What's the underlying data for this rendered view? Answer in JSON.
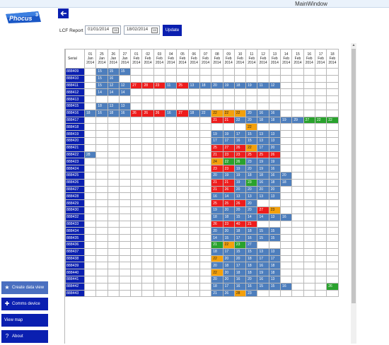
{
  "window": {
    "title": "MainWindow"
  },
  "logo": {
    "text": "Phocus",
    "superscript": "3"
  },
  "report": {
    "label": "LCF Report",
    "from_date": "01/01/2014",
    "to_date": "18/02/2014",
    "update_label": "Update"
  },
  "grid": {
    "serial_header": "Serial",
    "dates": [
      [
        "01",
        "Jan",
        "2014"
      ],
      [
        "25",
        "Jan",
        "2014"
      ],
      [
        "26",
        "Jan",
        "2014"
      ],
      [
        "27",
        "Jan",
        "2014"
      ],
      [
        "01",
        "Feb",
        "2014"
      ],
      [
        "02",
        "Feb",
        "2014"
      ],
      [
        "03",
        "Feb",
        "2014"
      ],
      [
        "04",
        "Feb",
        "2014"
      ],
      [
        "05",
        "Feb",
        "2014"
      ],
      [
        "06",
        "Feb",
        "2014"
      ],
      [
        "07",
        "Feb",
        "2014"
      ],
      [
        "08",
        "Feb",
        "2014"
      ],
      [
        "09",
        "Feb",
        "2014"
      ],
      [
        "10",
        "Feb",
        "2014"
      ],
      [
        "11",
        "Feb",
        "2014"
      ],
      [
        "12",
        "Feb",
        "2014"
      ],
      [
        "13",
        "Feb",
        "2014"
      ],
      [
        "14",
        "Feb",
        "2014"
      ],
      [
        "15",
        "Feb",
        "2014"
      ],
      [
        "16",
        "Feb",
        "2014"
      ],
      [
        "17",
        "Feb",
        "2014"
      ],
      [
        "18",
        "Feb",
        "2014"
      ]
    ],
    "legend_colors": {
      "1": "#4d7ebd",
      "2": "#ee1c1c",
      "3": "#f4a00b",
      "4": "#29a22d"
    },
    "rows": [
      {
        "serial": "888409",
        "cells": [
          [
            1,
            1,
            "15"
          ],
          [
            2,
            1,
            "15"
          ],
          [
            3,
            1,
            "15"
          ]
        ]
      },
      {
        "serial": "888410",
        "cells": [
          [
            1,
            1,
            "15"
          ],
          [
            2,
            1,
            "16"
          ]
        ]
      },
      {
        "serial": "888411",
        "cells": [
          [
            1,
            1,
            "15"
          ],
          [
            2,
            1,
            "12"
          ],
          [
            3,
            1,
            "12"
          ],
          [
            4,
            2,
            "27"
          ],
          [
            5,
            2,
            "28"
          ],
          [
            6,
            2,
            "23"
          ],
          [
            7,
            1,
            "11"
          ],
          [
            8,
            2,
            "25"
          ],
          [
            9,
            1,
            "13"
          ],
          [
            10,
            1,
            "18"
          ],
          [
            11,
            1,
            "20"
          ],
          [
            12,
            1,
            "19"
          ],
          [
            13,
            1,
            "18"
          ],
          [
            14,
            1,
            "19"
          ],
          [
            15,
            1,
            "11"
          ],
          [
            16,
            1,
            "12"
          ]
        ]
      },
      {
        "serial": "888412",
        "cells": [
          [
            1,
            1,
            "14"
          ],
          [
            2,
            1,
            "14"
          ],
          [
            3,
            1,
            "14"
          ]
        ]
      },
      {
        "serial": "888413",
        "cells": []
      },
      {
        "serial": "888415",
        "cells": [
          [
            1,
            1,
            "18"
          ],
          [
            2,
            1,
            "13"
          ],
          [
            3,
            1,
            "13"
          ]
        ]
      },
      {
        "serial": "888416",
        "cells": [
          [
            0,
            1,
            "18"
          ],
          [
            1,
            1,
            "16"
          ],
          [
            2,
            1,
            "18"
          ],
          [
            3,
            1,
            "16"
          ],
          [
            4,
            2,
            "26"
          ],
          [
            5,
            2,
            "26"
          ],
          [
            6,
            2,
            "26"
          ],
          [
            7,
            1,
            "16"
          ],
          [
            8,
            2,
            "27"
          ],
          [
            9,
            1,
            "18"
          ],
          [
            10,
            1,
            "22"
          ],
          [
            11,
            3,
            "22"
          ],
          [
            12,
            3,
            "22"
          ],
          [
            13,
            3,
            "22"
          ],
          [
            14,
            1,
            "20"
          ],
          [
            15,
            1,
            "16"
          ],
          [
            16,
            1,
            "16"
          ]
        ]
      },
      {
        "serial": "888417",
        "cells": [
          [
            11,
            2,
            "21"
          ],
          [
            12,
            2,
            "21"
          ],
          [
            13,
            1,
            "22"
          ],
          [
            14,
            1,
            "20"
          ],
          [
            15,
            1,
            "18"
          ],
          [
            16,
            1,
            "18"
          ],
          [
            17,
            1,
            "19"
          ],
          [
            18,
            1,
            "29"
          ],
          [
            19,
            4,
            "27"
          ],
          [
            20,
            4,
            "22"
          ],
          [
            21,
            4,
            "22"
          ]
        ]
      },
      {
        "serial": "888418",
        "cells": [
          [
            14,
            3,
            "22"
          ]
        ]
      },
      {
        "serial": "888419",
        "cells": [
          [
            11,
            1,
            "19"
          ],
          [
            12,
            1,
            "19"
          ],
          [
            13,
            1,
            "17"
          ],
          [
            14,
            1,
            "15"
          ],
          [
            15,
            1,
            "13"
          ],
          [
            16,
            1,
            "13"
          ]
        ]
      },
      {
        "serial": "888420",
        "cells": [
          [
            11,
            1,
            "17"
          ],
          [
            12,
            1,
            "17"
          ],
          [
            13,
            1,
            "16"
          ],
          [
            14,
            1,
            "15"
          ],
          [
            15,
            1,
            "13"
          ],
          [
            16,
            1,
            "13"
          ]
        ]
      },
      {
        "serial": "888421",
        "cells": [
          [
            11,
            2,
            "25"
          ],
          [
            12,
            2,
            "27"
          ],
          [
            13,
            2,
            "26"
          ],
          [
            14,
            3,
            "22"
          ],
          [
            15,
            1,
            "17"
          ],
          [
            16,
            1,
            "20"
          ]
        ]
      },
      {
        "serial": "888422",
        "cells": [
          [
            0,
            1,
            "28"
          ],
          [
            11,
            2,
            "21"
          ],
          [
            12,
            2,
            "23"
          ],
          [
            13,
            2,
            "23"
          ],
          [
            14,
            2,
            "25"
          ],
          [
            15,
            2,
            "25"
          ],
          [
            16,
            2,
            "26"
          ]
        ]
      },
      {
        "serial": "888423",
        "cells": [
          [
            11,
            3,
            "24"
          ],
          [
            12,
            4,
            "22"
          ],
          [
            13,
            4,
            "26"
          ],
          [
            14,
            1,
            "23"
          ],
          [
            15,
            1,
            "19"
          ],
          [
            16,
            1,
            "19"
          ]
        ]
      },
      {
        "serial": "888424",
        "cells": [
          [
            11,
            2,
            "23"
          ],
          [
            12,
            2,
            "23"
          ],
          [
            13,
            1,
            "19"
          ],
          [
            14,
            1,
            "20"
          ],
          [
            15,
            1,
            "19"
          ],
          [
            16,
            1,
            "16"
          ]
        ]
      },
      {
        "serial": "888425",
        "cells": [
          [
            11,
            1,
            "20"
          ],
          [
            12,
            1,
            "19"
          ],
          [
            13,
            1,
            "19"
          ],
          [
            14,
            1,
            "18"
          ],
          [
            15,
            1,
            "18"
          ],
          [
            16,
            1,
            "16"
          ],
          [
            17,
            1,
            "20"
          ]
        ]
      },
      {
        "serial": "888426",
        "cells": [
          [
            11,
            2,
            "21"
          ],
          [
            12,
            2,
            "21"
          ],
          [
            13,
            1,
            "19"
          ],
          [
            14,
            4,
            "23"
          ],
          [
            15,
            1,
            "16"
          ],
          [
            16,
            1,
            "18"
          ],
          [
            17,
            1,
            "18"
          ]
        ]
      },
      {
        "serial": "888427",
        "cells": [
          [
            11,
            2,
            "21"
          ],
          [
            12,
            2,
            "26"
          ],
          [
            13,
            1,
            "20"
          ],
          [
            14,
            1,
            "20"
          ],
          [
            15,
            1,
            "20"
          ],
          [
            16,
            1,
            "20"
          ]
        ]
      },
      {
        "serial": "888428",
        "cells": [
          [
            11,
            1,
            "16"
          ],
          [
            12,
            1,
            "14"
          ],
          [
            13,
            1,
            "13"
          ],
          [
            14,
            1,
            "13"
          ],
          [
            15,
            1,
            "13"
          ],
          [
            16,
            1,
            "13"
          ]
        ]
      },
      {
        "serial": "888429",
        "cells": [
          [
            11,
            2,
            "25"
          ],
          [
            12,
            2,
            "25"
          ],
          [
            13,
            2,
            "26"
          ],
          [
            14,
            1,
            "20"
          ]
        ]
      },
      {
        "serial": "888430",
        "cells": [
          [
            11,
            1,
            "19"
          ],
          [
            12,
            1,
            "20"
          ],
          [
            13,
            1,
            "20"
          ],
          [
            14,
            1,
            "20"
          ],
          [
            15,
            2,
            "27"
          ],
          [
            16,
            3,
            "23"
          ]
        ]
      },
      {
        "serial": "888432",
        "cells": [
          [
            11,
            1,
            "18"
          ],
          [
            12,
            1,
            "18"
          ],
          [
            13,
            1,
            "15"
          ],
          [
            14,
            1,
            "14"
          ],
          [
            15,
            1,
            "14"
          ],
          [
            16,
            1,
            "13"
          ],
          [
            17,
            1,
            "16"
          ]
        ]
      },
      {
        "serial": "888433",
        "cells": [
          [
            11,
            2,
            "26"
          ],
          [
            12,
            2,
            "23"
          ],
          [
            13,
            2,
            "40"
          ],
          [
            14,
            2,
            "21"
          ]
        ]
      },
      {
        "serial": "888434",
        "cells": [
          [
            11,
            1,
            "20"
          ],
          [
            12,
            1,
            "20"
          ],
          [
            13,
            1,
            "18"
          ],
          [
            14,
            1,
            "18"
          ],
          [
            15,
            1,
            "15"
          ],
          [
            16,
            1,
            "15"
          ]
        ]
      },
      {
        "serial": "888435",
        "cells": [
          [
            11,
            1,
            "14"
          ],
          [
            12,
            1,
            "15"
          ],
          [
            13,
            1,
            "17"
          ],
          [
            14,
            1,
            "16"
          ],
          [
            15,
            1,
            "15"
          ],
          [
            16,
            1,
            "15"
          ]
        ]
      },
      {
        "serial": "888436",
        "cells": [
          [
            11,
            4,
            "21"
          ],
          [
            12,
            3,
            "22"
          ],
          [
            13,
            4,
            "23"
          ],
          [
            14,
            1,
            "27"
          ]
        ]
      },
      {
        "serial": "888437",
        "cells": [
          [
            11,
            1,
            "18"
          ],
          [
            12,
            1,
            "17"
          ],
          [
            13,
            1,
            "15"
          ],
          [
            14,
            1,
            "15"
          ],
          [
            15,
            1,
            "13"
          ],
          [
            16,
            1,
            "13"
          ]
        ]
      },
      {
        "serial": "888438",
        "cells": [
          [
            11,
            3,
            "22"
          ],
          [
            12,
            1,
            "20"
          ],
          [
            13,
            1,
            "20"
          ],
          [
            14,
            1,
            "18"
          ],
          [
            15,
            1,
            "17"
          ],
          [
            16,
            1,
            "17"
          ]
        ]
      },
      {
        "serial": "888439",
        "cells": [
          [
            11,
            1,
            "20"
          ],
          [
            12,
            1,
            "18"
          ],
          [
            13,
            1,
            "17"
          ],
          [
            14,
            1,
            "18"
          ],
          [
            15,
            1,
            "16"
          ],
          [
            16,
            1,
            "18"
          ]
        ]
      },
      {
        "serial": "888440",
        "cells": [
          [
            11,
            3,
            "22"
          ],
          [
            12,
            1,
            "20"
          ],
          [
            13,
            1,
            "18"
          ],
          [
            14,
            1,
            "18"
          ],
          [
            15,
            1,
            "19"
          ],
          [
            16,
            1,
            "18"
          ]
        ]
      },
      {
        "serial": "888441",
        "cells": [
          [
            11,
            1,
            "20"
          ],
          [
            12,
            1,
            "20"
          ],
          [
            13,
            1,
            "16"
          ],
          [
            14,
            1,
            "20"
          ],
          [
            15,
            1,
            "16"
          ],
          [
            16,
            1,
            "13"
          ]
        ]
      },
      {
        "serial": "888442",
        "cells": [
          [
            11,
            1,
            "18"
          ],
          [
            12,
            1,
            "17"
          ],
          [
            13,
            1,
            "16"
          ],
          [
            14,
            1,
            "16"
          ],
          [
            15,
            1,
            "15"
          ],
          [
            16,
            1,
            "15"
          ],
          [
            17,
            1,
            "16"
          ],
          [
            21,
            4,
            "26"
          ]
        ]
      },
      {
        "serial": "888443",
        "cells": [
          [
            11,
            1,
            "21"
          ],
          [
            12,
            1,
            "26"
          ],
          [
            13,
            3,
            "28"
          ],
          [
            14,
            1,
            "23"
          ]
        ]
      }
    ]
  },
  "sidebar": {
    "buttons": [
      {
        "label": "Create data view",
        "icon": "star-icon"
      },
      {
        "label": "Comms device",
        "icon": "plus-icon"
      },
      {
        "label": "View map",
        "icon": ""
      },
      {
        "label": "About",
        "icon": "question-icon"
      }
    ]
  }
}
